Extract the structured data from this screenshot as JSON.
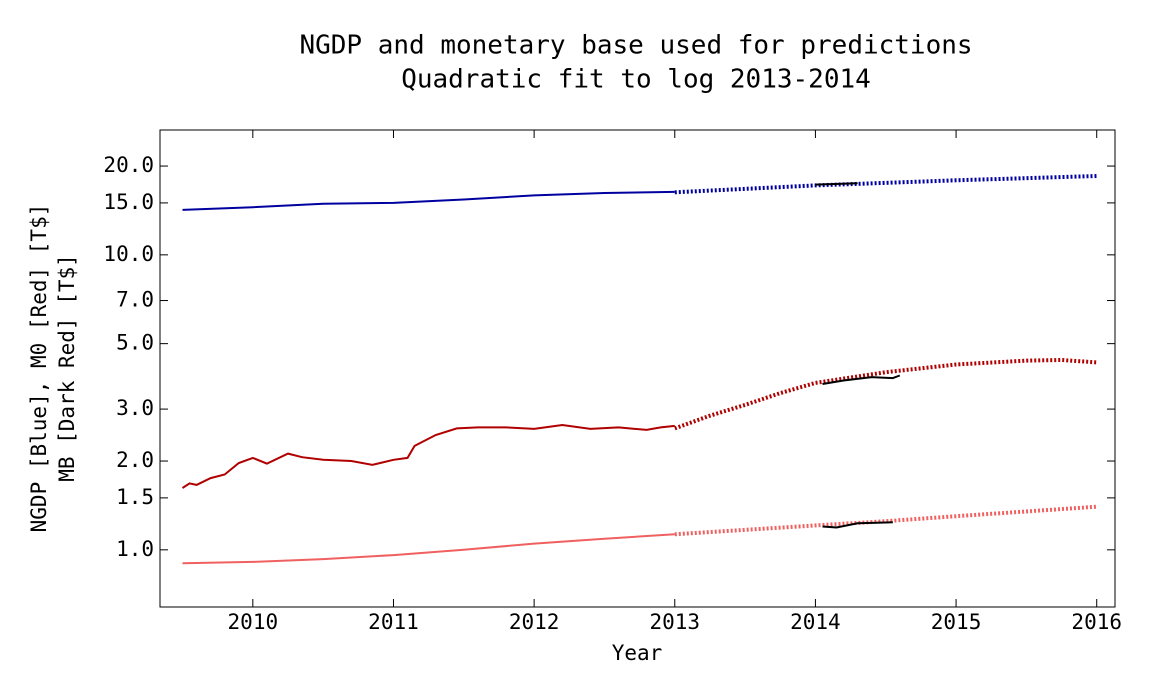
{
  "chart_data": {
    "type": "line",
    "title": "NGDP and monetary base used for predictions",
    "subtitle": "Quadratic fit to log 2013-2014",
    "xlabel": "Year",
    "ylabel": [
      "NGDP [Blue], M0 [Red] [T$]",
      "MB [Dark Red] [T$]"
    ],
    "log_y": true,
    "xlim": [
      2009.34,
      2016.13
    ],
    "ylim": [
      0.64,
      26.5
    ],
    "xticks": [
      2010,
      2011,
      2012,
      2013,
      2014,
      2015,
      2016
    ],
    "yticks": [
      {
        "value": 1,
        "label": "1.0"
      },
      {
        "value": 1.5,
        "label": "1.5"
      },
      {
        "value": 2,
        "label": "2.0"
      },
      {
        "value": 3,
        "label": "3.0"
      },
      {
        "value": 5,
        "label": "5.0"
      },
      {
        "value": 7,
        "label": "7.0"
      },
      {
        "value": 10,
        "label": "10.0"
      },
      {
        "value": 15,
        "label": "15.0"
      },
      {
        "value": 20,
        "label": "20.0"
      }
    ],
    "series": [
      {
        "color": "#0000a0",
        "style": "solid",
        "x": [
          2009.5,
          2010,
          2010.5,
          2011,
          2011.5,
          2012,
          2012.5,
          2013
        ],
        "values": [
          14.2,
          14.5,
          14.9,
          15.0,
          15.4,
          15.9,
          16.2,
          16.35
        ]
      },
      {
        "color": "#0000a0",
        "style": "dotted",
        "x": [
          2013,
          2014,
          2015,
          2016
        ],
        "values": [
          16.3,
          17.2,
          17.9,
          18.5
        ]
      },
      {
        "color": "#000000",
        "style": "solid",
        "x": [
          2014,
          2014.3
        ],
        "values": [
          17.3,
          17.5
        ]
      },
      {
        "color": "#b00000",
        "style": "solid",
        "x": [
          2009.5,
          2009.55,
          2009.6,
          2009.7,
          2009.8,
          2009.9,
          2010,
          2010.1,
          2010.25,
          2010.35,
          2010.5,
          2010.7,
          2010.85,
          2011,
          2011.1,
          2011.15,
          2011.3,
          2011.45,
          2011.6,
          2011.8,
          2012,
          2012.2,
          2012.4,
          2012.6,
          2012.8,
          2012.9,
          2013
        ],
        "values": [
          1.62,
          1.68,
          1.66,
          1.75,
          1.8,
          1.97,
          2.05,
          1.96,
          2.12,
          2.06,
          2.02,
          2.0,
          1.94,
          2.02,
          2.05,
          2.25,
          2.45,
          2.58,
          2.6,
          2.6,
          2.57,
          2.65,
          2.57,
          2.6,
          2.55,
          2.6,
          2.63
        ]
      },
      {
        "color": "#b00000",
        "style": "dotted",
        "x": [
          2013,
          2013.25,
          2013.5,
          2013.75,
          2014,
          2014.5,
          2015,
          2015.5,
          2015.75,
          2016
        ],
        "values": [
          2.58,
          2.85,
          3.1,
          3.4,
          3.68,
          4.0,
          4.25,
          4.38,
          4.4,
          4.32
        ]
      },
      {
        "color": "#000000",
        "style": "solid",
        "x": [
          2014.05,
          2014.2,
          2014.4,
          2014.55,
          2014.6
        ],
        "values": [
          3.65,
          3.75,
          3.85,
          3.82,
          3.9
        ]
      },
      {
        "color": "#f06060",
        "style": "solid",
        "x": [
          2009.5,
          2010,
          2010.5,
          2011,
          2011.5,
          2012,
          2012.5,
          2013
        ],
        "values": [
          0.9,
          0.91,
          0.93,
          0.96,
          1.0,
          1.05,
          1.09,
          1.13
        ]
      },
      {
        "color": "#f06060",
        "style": "dotted",
        "x": [
          2013,
          2014,
          2014.5,
          2015,
          2016
        ],
        "values": [
          1.13,
          1.21,
          1.25,
          1.3,
          1.4
        ]
      },
      {
        "color": "#000000",
        "style": "solid",
        "x": [
          2014.05,
          2014.15,
          2014.3,
          2014.55
        ],
        "values": [
          1.2,
          1.19,
          1.23,
          1.24
        ]
      }
    ]
  }
}
